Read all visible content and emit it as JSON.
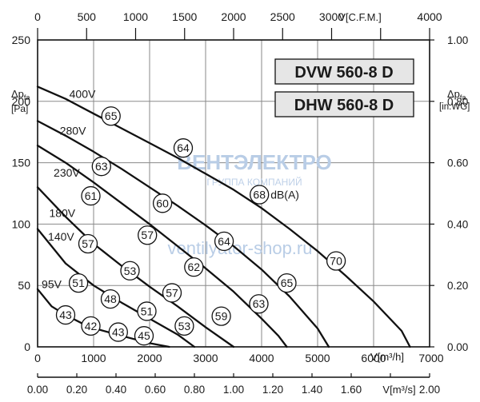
{
  "chart_data": {
    "type": "line",
    "axes": {
      "bottom_primary": {
        "unit_label": "V[m³/h]",
        "min": 0,
        "max": 7000,
        "ticks": [
          0,
          1000,
          2000,
          3000,
          4000,
          5000,
          6000,
          7000
        ]
      },
      "bottom_secondary": {
        "unit_label": "V[m³/s]",
        "min": 0,
        "max": 2.0,
        "ticks": [
          "0.00",
          "0.20",
          "0.40",
          "0.60",
          "0.80",
          "1.00",
          "1.20",
          "1.40",
          "1.60",
          "1.80",
          "2.00"
        ]
      },
      "top": {
        "unit_label": "V[C.F.M.]",
        "min": 0,
        "max": 4000,
        "ticks": [
          0,
          500,
          1000,
          1500,
          2000,
          2500,
          3000,
          3500,
          4000
        ]
      },
      "left": {
        "label_main": "Δp",
        "label_sub": "fa",
        "unit": "[Pa]",
        "min": 0,
        "max": 250,
        "ticks": [
          0,
          50,
          100,
          150,
          200,
          250
        ]
      },
      "right": {
        "label_main": "Δp",
        "label_sub": "fa",
        "unit": "[in.WG]",
        "min": 0,
        "max": 1.0,
        "ticks": [
          "0.00",
          "0.20",
          "0.40",
          "0.60",
          "0.80",
          "1.00"
        ]
      }
    },
    "grid": true,
    "models": [
      "DVW 560-8 D",
      "DHW 560-8 D"
    ],
    "series": [
      {
        "name": "400V",
        "x": [
          0,
          500,
          1000,
          1500,
          2000,
          2500,
          3000,
          3500,
          4000,
          4500,
          5000,
          5500,
          6000,
          6500,
          6650
        ],
        "y": [
          212,
          202,
          190,
          178,
          166,
          154,
          141,
          128,
          113,
          96,
          78,
          58,
          37,
          13,
          0
        ]
      },
      {
        "name": "280V",
        "x": [
          0,
          500,
          1000,
          1500,
          2000,
          2500,
          3000,
          3500,
          4000,
          4500,
          5000,
          5200
        ],
        "y": [
          184,
          172,
          159,
          145,
          130,
          115,
          99,
          82,
          63,
          41,
          15,
          0
        ]
      },
      {
        "name": "230V",
        "x": [
          0,
          500,
          1000,
          1500,
          2000,
          2500,
          3000,
          3500,
          4000,
          4300,
          4450
        ],
        "y": [
          164,
          150,
          134,
          117,
          100,
          82,
          64,
          45,
          23,
          9,
          0
        ]
      },
      {
        "name": "180V",
        "x": [
          0,
          500,
          1000,
          1500,
          2000,
          2500,
          3000,
          3500
        ],
        "y": [
          130,
          106,
          84,
          66,
          49,
          33,
          16,
          0
        ]
      },
      {
        "name": "140V",
        "x": [
          0,
          500,
          1000,
          1500,
          2000,
          2500,
          2800
        ],
        "y": [
          96,
          68,
          50,
          36,
          23,
          10,
          0
        ]
      },
      {
        "name": "95V",
        "x": [
          0,
          250,
          500,
          800,
          1100,
          1500,
          2000,
          2350
        ],
        "y": [
          47,
          33,
          26,
          19,
          14,
          9,
          3,
          0
        ]
      }
    ],
    "curve_labels": [
      {
        "text": "400V",
        "x": 800,
        "y": 206
      },
      {
        "text": "280V",
        "x": 630,
        "y": 176
      },
      {
        "text": "230V",
        "x": 520,
        "y": 142
      },
      {
        "text": "180V",
        "x": 440,
        "y": 109
      },
      {
        "text": "140V",
        "x": 420,
        "y": 90
      },
      {
        "text": "95V",
        "x": 250,
        "y": 51
      }
    ],
    "sound_levels_dBA": [
      {
        "value": "65",
        "x": 1310,
        "y": 188
      },
      {
        "value": "64",
        "x": 2600,
        "y": 162
      },
      {
        "value": "68",
        "x": 3960,
        "y": 124,
        "unit": "dB(A)"
      },
      {
        "value": "70",
        "x": 5330,
        "y": 70
      },
      {
        "value": "63",
        "x": 1140,
        "y": 147
      },
      {
        "value": "60",
        "x": 2230,
        "y": 117
      },
      {
        "value": "64",
        "x": 3330,
        "y": 86
      },
      {
        "value": "65",
        "x": 4450,
        "y": 52
      },
      {
        "value": "61",
        "x": 950,
        "y": 123
      },
      {
        "value": "57",
        "x": 1960,
        "y": 91
      },
      {
        "value": "62",
        "x": 2790,
        "y": 65
      },
      {
        "value": "63",
        "x": 3950,
        "y": 35
      },
      {
        "value": "57",
        "x": 900,
        "y": 84
      },
      {
        "value": "53",
        "x": 1650,
        "y": 62
      },
      {
        "value": "57",
        "x": 2400,
        "y": 44
      },
      {
        "value": "59",
        "x": 3280,
        "y": 25
      },
      {
        "value": "51",
        "x": 730,
        "y": 52
      },
      {
        "value": "48",
        "x": 1300,
        "y": 39
      },
      {
        "value": "51",
        "x": 1950,
        "y": 29
      },
      {
        "value": "53",
        "x": 2620,
        "y": 17
      },
      {
        "value": "43",
        "x": 500,
        "y": 26
      },
      {
        "value": "42",
        "x": 950,
        "y": 17
      },
      {
        "value": "43",
        "x": 1440,
        "y": 12
      },
      {
        "value": "45",
        "x": 1900,
        "y": 9
      }
    ]
  },
  "watermark": {
    "brand": "ВЕНТЭЛЕКТРО",
    "tagline": "ГРУППА КОМПАНИЙ",
    "site": "ventilyator-shop.ru"
  }
}
